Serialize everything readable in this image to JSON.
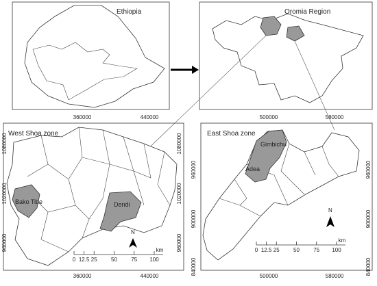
{
  "panels": [
    {
      "title": "Ethiopia"
    },
    {
      "title": "Oromia Region"
    },
    {
      "title": "West Shoa zone",
      "x_ticks": [
        360000,
        440000
      ],
      "y_ticks": [
        1080000,
        1020000,
        960000
      ],
      "labels": [
        "Bako Tibe",
        "Dendi"
      ],
      "north": "N",
      "scale_ticks": [
        "0",
        "12.5",
        "25",
        "50",
        "75",
        "100"
      ],
      "scale_unit": "km"
    },
    {
      "title": "East Shoa zone",
      "x_ticks": [
        500000,
        580000
      ],
      "y_ticks": [
        960000,
        900000,
        840000
      ],
      "labels": [
        "Gimbichu",
        "Adea"
      ],
      "north": "N",
      "scale_ticks": [
        "0",
        "12.5",
        "25",
        "50",
        "75",
        "100"
      ],
      "scale_unit": "km"
    }
  ]
}
